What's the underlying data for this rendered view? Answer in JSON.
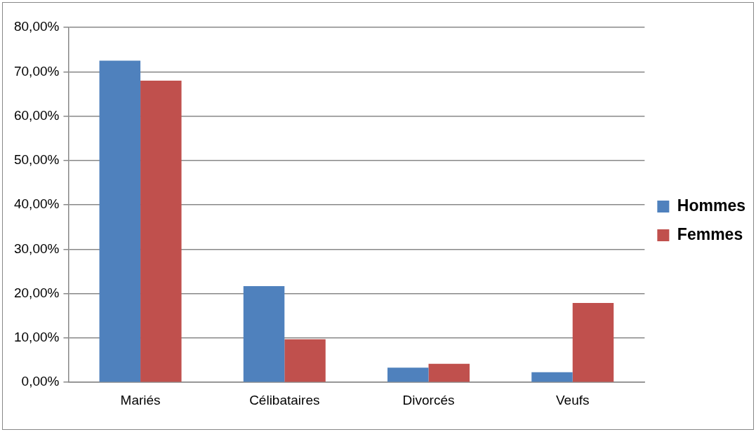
{
  "chart_data": {
    "type": "bar",
    "categories": [
      "Mariés",
      "Célibataires",
      "Divorcés",
      "Veufs"
    ],
    "series": [
      {
        "name": "Hommes",
        "color": "#4f81bd",
        "values": [
          72.5,
          21.7,
          3.3,
          2.3
        ]
      },
      {
        "name": "Femmes",
        "color": "#c0504d",
        "values": [
          68.0,
          9.7,
          4.2,
          17.9
        ]
      }
    ],
    "ylim": [
      0,
      80
    ],
    "yticks": [
      {
        "value": 0,
        "label": "0,00%"
      },
      {
        "value": 10,
        "label": "10,00%"
      },
      {
        "value": 20,
        "label": "20,00%"
      },
      {
        "value": 30,
        "label": "30,00%"
      },
      {
        "value": 40,
        "label": "40,00%"
      },
      {
        "value": 50,
        "label": "50,00%"
      },
      {
        "value": 60,
        "label": "60,00%"
      },
      {
        "value": 70,
        "label": "70,00%"
      },
      {
        "value": 80,
        "label": "80,00%"
      }
    ],
    "grid": "y",
    "legend": "right"
  }
}
